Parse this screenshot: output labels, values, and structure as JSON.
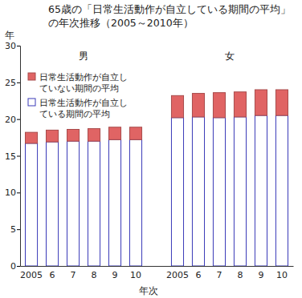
{
  "chart_data": {
    "type": "bar",
    "stacked": true,
    "title": "65歳の「日常生活動作が自立している期間の平均」\nの年次推移（2005～2010年）",
    "y_label": "年",
    "x_label": "年次",
    "annotations": [
      "男",
      "女"
    ],
    "categories": [
      "2005",
      "6",
      "7",
      "8",
      "9",
      "10",
      null,
      "2005",
      "6",
      "7",
      "8",
      "9",
      "10"
    ],
    "series": [
      {
        "name": "日常生活動作が自立している期間の平均",
        "color": "#3a3ab8",
        "values": [
          16.7,
          16.9,
          17.0,
          17.0,
          17.2,
          17.2,
          null,
          20.2,
          20.3,
          20.2,
          20.3,
          20.5,
          20.5
        ]
      },
      {
        "name": "日常生活動作が自立していない期間の平均",
        "color": "#e06464",
        "values": [
          1.5,
          1.6,
          1.6,
          1.7,
          1.7,
          1.7,
          null,
          3.0,
          3.2,
          3.4,
          3.4,
          3.5,
          3.5
        ]
      }
    ],
    "ylim": [
      0,
      30
    ],
    "yticks": [
      0,
      5,
      10,
      15,
      20,
      25,
      30
    ],
    "grid": false,
    "legend": "upper left"
  }
}
